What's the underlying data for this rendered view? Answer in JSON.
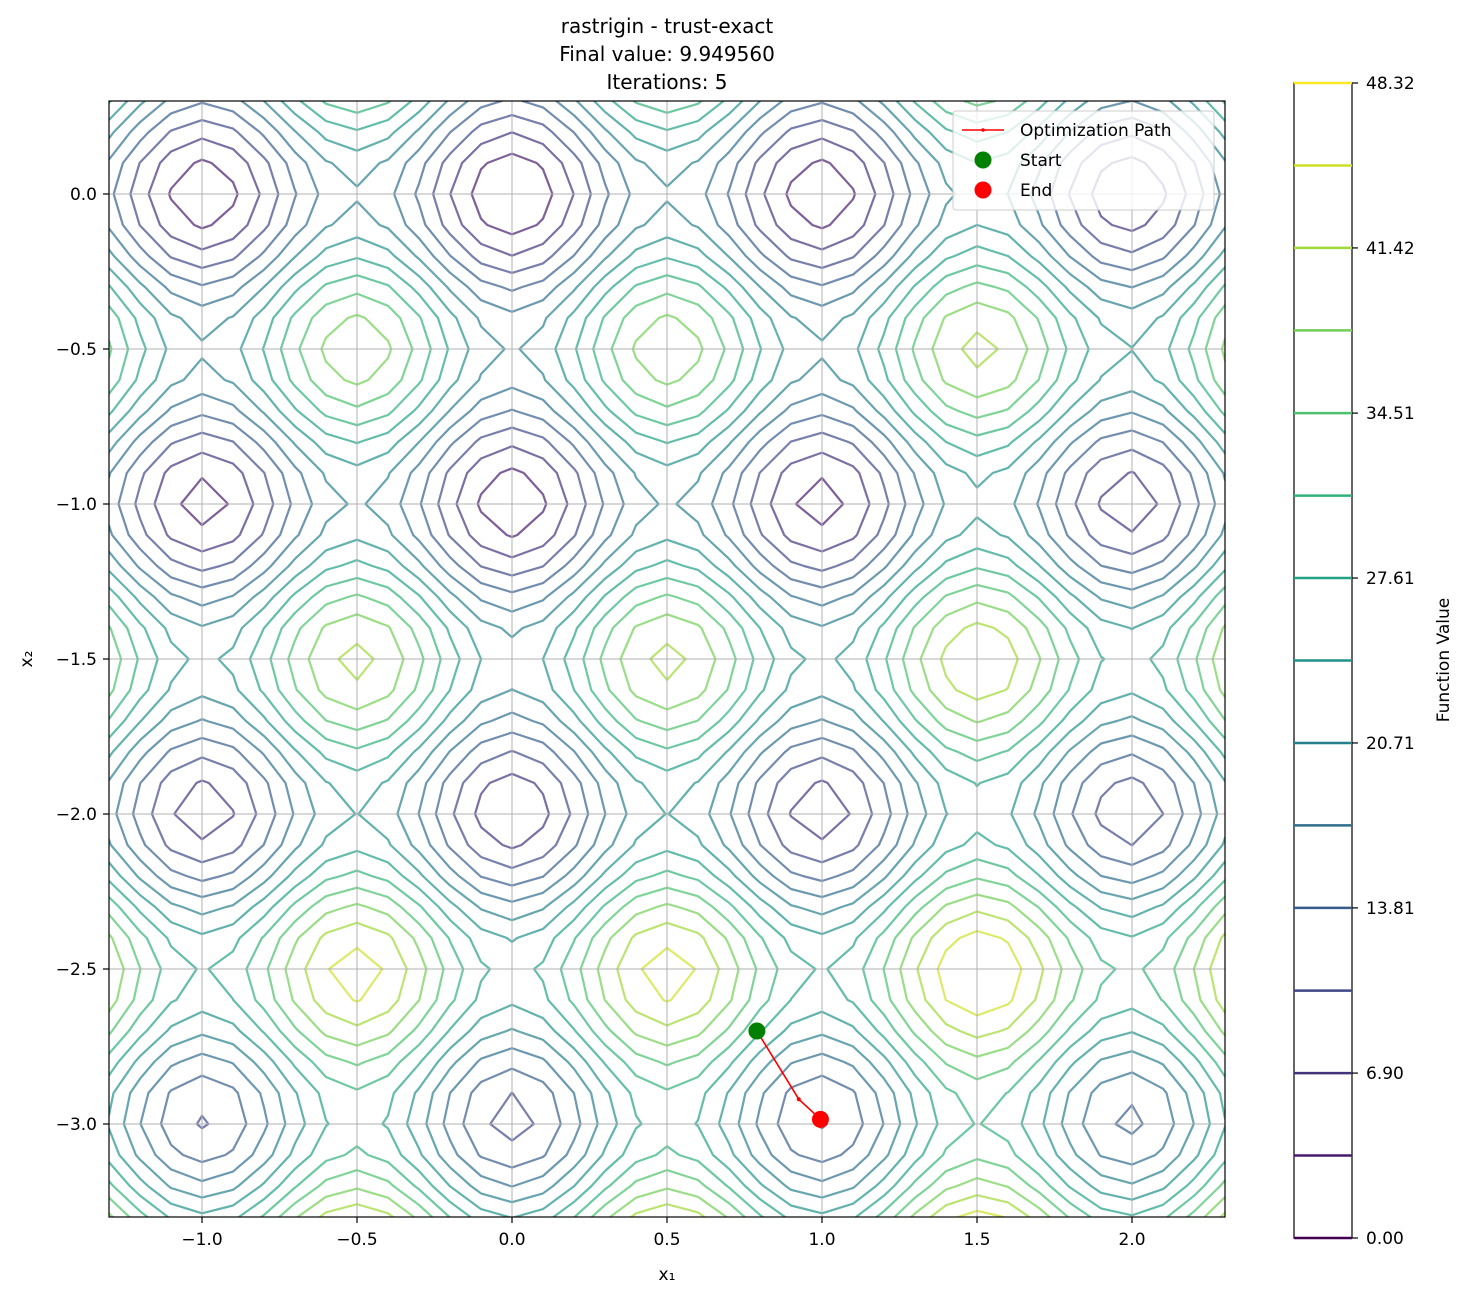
{
  "chart_data": {
    "type": "contour",
    "title_lines": [
      "rastrigin - trust-exact",
      "Final value: 9.949560",
      "Iterations: 5"
    ],
    "xlabel": "x₁",
    "ylabel": "x₂",
    "xlim": [
      -1.3,
      2.3
    ],
    "ylim": [
      -3.3,
      0.3
    ],
    "xticks": [
      -1.0,
      -0.5,
      0.0,
      0.5,
      1.0,
      1.5,
      2.0
    ],
    "xtick_labels": [
      "−1.0",
      "−0.5",
      "0.0",
      "0.5",
      "1.0",
      "1.5",
      "2.0"
    ],
    "yticks": [
      0.0,
      -0.5,
      -1.0,
      -1.5,
      -2.0,
      -2.5,
      -3.0
    ],
    "ytick_labels": [
      "0.0",
      "−0.5",
      "−1.0",
      "−1.5",
      "−2.0",
      "−2.5",
      "−3.0"
    ],
    "grid": true,
    "function": "rastrigin",
    "contour_levels": [
      3.45,
      6.9,
      10.35,
      13.81,
      17.26,
      20.71,
      24.16,
      27.61,
      31.06,
      34.51,
      37.97,
      41.42,
      44.87
    ],
    "colormap": [
      "#440154",
      "#482575",
      "#414487",
      "#35608d",
      "#2a788e",
      "#21918c",
      "#22a884",
      "#44bf70",
      "#7ad151",
      "#bddf26",
      "#fde725"
    ],
    "contour_alpha": 0.7,
    "path": {
      "label": "Optimization Path",
      "color": "#ff0000",
      "points": [
        [
          0.79,
          -2.7
        ],
        [
          0.925,
          -2.92
        ],
        [
          0.995,
          -2.985
        ]
      ]
    },
    "start": {
      "label": "Start",
      "x": 0.79,
      "y": -2.7,
      "color": "#008000"
    },
    "end": {
      "label": "End",
      "x": 0.995,
      "y": -2.985,
      "color": "#ff0000"
    },
    "legend": {
      "position": "top-right",
      "entries": [
        "Optimization Path",
        "Start",
        "End"
      ]
    },
    "colorbar": {
      "label": "Function Value",
      "range": [
        0.0,
        48.32
      ],
      "tick_values": [
        0.0,
        6.9,
        13.81,
        20.71,
        27.61,
        34.51,
        41.42,
        48.32
      ],
      "tick_labels": [
        "0.00",
        "6.90",
        "13.81",
        "20.71",
        "27.61",
        "34.51",
        "41.42",
        "48.32"
      ]
    }
  }
}
